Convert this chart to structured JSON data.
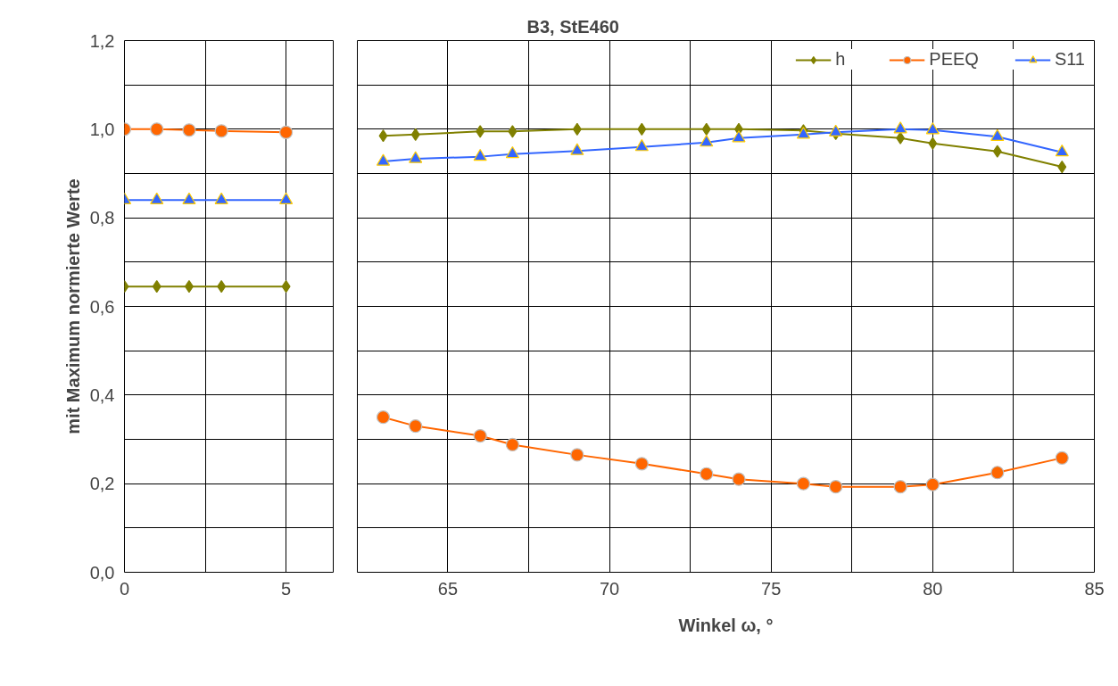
{
  "chart_data": [
    {
      "type": "line",
      "ylabel": "mit Maximum normierte Werte",
      "x": [
        0,
        1,
        2,
        3,
        5
      ],
      "xlim": [
        0,
        6.46
      ],
      "xticks": [
        0,
        {
          "value": 2.5,
          "label": null
        },
        5
      ],
      "ylim": [
        0,
        1.2
      ],
      "yticks": [
        {
          "value": 0,
          "label": "0,0"
        },
        {
          "value": 0.1,
          "label": null
        },
        {
          "value": 0.2,
          "label": "0,2"
        },
        {
          "value": 0.3,
          "label": null
        },
        {
          "value": 0.4,
          "label": "0,4"
        },
        {
          "value": 0.5,
          "label": null
        },
        {
          "value": 0.6,
          "label": "0,6"
        },
        {
          "value": 0.7,
          "label": null
        },
        {
          "value": 0.8,
          "label": "0,8"
        },
        {
          "value": 0.9,
          "label": null
        },
        {
          "value": 1.0,
          "label": "1,0"
        },
        {
          "value": 1.1,
          "label": null
        },
        {
          "value": 1.2,
          "label": "1,2"
        }
      ],
      "grid": true,
      "series": [
        {
          "color": "#808000",
          "marker": "diamond",
          "values": [
            0.645,
            0.645,
            0.645,
            0.645,
            0.645
          ]
        },
        {
          "color": "#ff6600",
          "marker": "circle",
          "values": [
            1.0,
            1.0,
            0.998,
            0.996,
            0.993
          ]
        },
        {
          "color": "#3366ff",
          "marker": "triangle",
          "values": [
            0.84,
            0.84,
            0.84,
            0.84,
            0.84
          ]
        }
      ]
    },
    {
      "type": "line",
      "title": "B3, StE460",
      "xlabel": "Winkel ω, °",
      "x": [
        63,
        64,
        66,
        67,
        69,
        71,
        73,
        74,
        76,
        77,
        79,
        80,
        82,
        84
      ],
      "xlim": [
        62.2,
        85
      ],
      "xticks": [
        65,
        {
          "value": 67.5,
          "label": null
        },
        70,
        {
          "value": 72.5,
          "label": null
        },
        75,
        {
          "value": 77.5,
          "label": null
        },
        80,
        {
          "value": 82.5,
          "label": null
        },
        85
      ],
      "ylim": [
        0,
        1.2
      ],
      "yticks": [
        {
          "value": 0,
          "label": null
        },
        {
          "value": 0.1,
          "label": null
        },
        {
          "value": 0.2,
          "label": null
        },
        {
          "value": 0.3,
          "label": null
        },
        {
          "value": 0.4,
          "label": null
        },
        {
          "value": 0.5,
          "label": null
        },
        {
          "value": 0.6,
          "label": null
        },
        {
          "value": 0.7,
          "label": null
        },
        {
          "value": 0.8,
          "label": null
        },
        {
          "value": 0.9,
          "label": null
        },
        {
          "value": 1.0,
          "label": null
        },
        {
          "value": 1.1,
          "label": null
        },
        {
          "value": 1.2,
          "label": null
        }
      ],
      "tick_labels": "x",
      "grid": true,
      "legend": "top right",
      "series": [
        {
          "name": "h",
          "color": "#808000",
          "marker": "diamond",
          "values": [
            0.985,
            0.988,
            0.995,
            0.995,
            1.0,
            1.0,
            1.0,
            1.0,
            0.997,
            0.99,
            0.98,
            0.968,
            0.95,
            0.915
          ]
        },
        {
          "name": "PEEQ",
          "color": "#ff6600",
          "marker": "circle",
          "values": [
            0.35,
            0.33,
            0.308,
            0.288,
            0.265,
            0.245,
            0.222,
            0.21,
            0.2,
            0.193,
            0.193,
            0.198,
            0.225,
            0.258
          ]
        },
        {
          "name": "S11",
          "color": "#3366ff",
          "marker": "triangle",
          "values": [
            0.927,
            0.933,
            0.938,
            0.944,
            0.951,
            0.96,
            0.97,
            0.98,
            0.988,
            0.993,
            1.0,
            0.998,
            0.983,
            0.948
          ]
        }
      ]
    }
  ]
}
